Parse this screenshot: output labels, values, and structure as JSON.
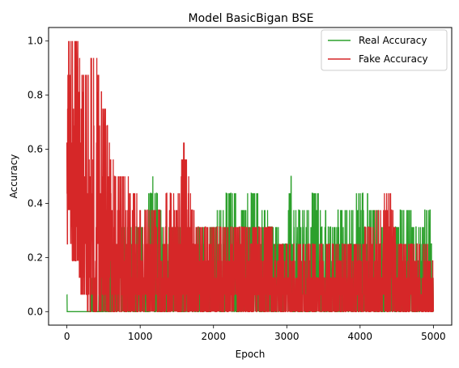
{
  "chart_data": {
    "type": "line",
    "title": "Model BasicBigan BSE",
    "xlabel": "Epoch",
    "ylabel": "Accuracy",
    "xlim": [
      -250,
      5250
    ],
    "ylim": [
      -0.05,
      1.05
    ],
    "xticks": [
      0,
      1000,
      2000,
      3000,
      4000,
      5000
    ],
    "yticks": [
      0.0,
      0.2,
      0.4,
      0.6,
      0.8,
      1.0
    ],
    "xtick_labels": [
      "0",
      "1000",
      "2000",
      "3000",
      "4000",
      "5000"
    ],
    "ytick_labels": [
      "0.0",
      "0.2",
      "0.4",
      "0.6",
      "0.8",
      "1.0"
    ],
    "grid": false,
    "legend_position": "top-right",
    "series": [
      {
        "name": "Real Accuracy",
        "color": "#2ca02c",
        "envelope": [
          [
            0,
            0.0,
            0.19
          ],
          [
            10,
            0.0,
            0.0
          ],
          [
            300,
            0.0,
            0.0
          ],
          [
            350,
            0.0,
            0.13
          ],
          [
            400,
            0.0,
            0.0
          ],
          [
            450,
            0.0,
            0.06
          ],
          [
            500,
            0.0,
            0.19
          ],
          [
            600,
            0.0,
            0.25
          ],
          [
            800,
            0.0,
            0.31
          ],
          [
            1000,
            0.0,
            0.31
          ],
          [
            1200,
            0.0,
            0.5
          ],
          [
            1300,
            0.0,
            0.31
          ],
          [
            1500,
            0.0,
            0.31
          ],
          [
            1600,
            0.0,
            0.25
          ],
          [
            1800,
            0.0,
            0.31
          ],
          [
            2000,
            0.0,
            0.31
          ],
          [
            2200,
            0.0,
            0.44
          ],
          [
            2400,
            0.0,
            0.38
          ],
          [
            2500,
            0.0,
            0.44
          ],
          [
            2600,
            0.0,
            0.44
          ],
          [
            2800,
            0.0,
            0.31
          ],
          [
            3000,
            0.0,
            0.25
          ],
          [
            3050,
            0.0,
            0.5
          ],
          [
            3100,
            0.0,
            0.38
          ],
          [
            3300,
            0.0,
            0.38
          ],
          [
            3400,
            0.0,
            0.44
          ],
          [
            3600,
            0.0,
            0.31
          ],
          [
            3800,
            0.0,
            0.38
          ],
          [
            3900,
            0.0,
            0.38
          ],
          [
            4000,
            0.0,
            0.44
          ],
          [
            4200,
            0.0,
            0.38
          ],
          [
            4400,
            0.0,
            0.25
          ],
          [
            4600,
            0.0,
            0.38
          ],
          [
            4800,
            0.0,
            0.31
          ],
          [
            4950,
            0.0,
            0.38
          ],
          [
            5000,
            0.0,
            0.13
          ]
        ]
      },
      {
        "name": "Fake Accuracy",
        "color": "#d62728",
        "envelope": [
          [
            0,
            0.19,
            0.62
          ],
          [
            20,
            0.38,
            1.0
          ],
          [
            80,
            0.19,
            1.0
          ],
          [
            150,
            0.19,
            1.0
          ],
          [
            200,
            0.06,
            0.88
          ],
          [
            250,
            0.06,
            0.88
          ],
          [
            300,
            0.0,
            0.94
          ],
          [
            350,
            0.0,
            0.94
          ],
          [
            400,
            0.0,
            0.94
          ],
          [
            450,
            0.0,
            0.81
          ],
          [
            500,
            0.0,
            0.75
          ],
          [
            550,
            0.0,
            0.69
          ],
          [
            600,
            0.0,
            0.56
          ],
          [
            700,
            0.0,
            0.5
          ],
          [
            800,
            0.0,
            0.5
          ],
          [
            900,
            0.0,
            0.44
          ],
          [
            1000,
            0.0,
            0.38
          ],
          [
            1100,
            0.0,
            0.38
          ],
          [
            1200,
            0.0,
            0.38
          ],
          [
            1300,
            0.0,
            0.38
          ],
          [
            1400,
            0.0,
            0.44
          ],
          [
            1500,
            0.0,
            0.38
          ],
          [
            1600,
            0.0,
            0.62
          ],
          [
            1700,
            0.0,
            0.38
          ],
          [
            1800,
            0.0,
            0.31
          ],
          [
            2000,
            0.0,
            0.31
          ],
          [
            2200,
            0.0,
            0.31
          ],
          [
            2400,
            0.0,
            0.31
          ],
          [
            2600,
            0.0,
            0.31
          ],
          [
            2800,
            0.0,
            0.31
          ],
          [
            2900,
            0.0,
            0.25
          ],
          [
            3000,
            0.0,
            0.25
          ],
          [
            3500,
            0.0,
            0.25
          ],
          [
            4000,
            0.0,
            0.25
          ],
          [
            4400,
            0.0,
            0.44
          ],
          [
            4500,
            0.0,
            0.25
          ],
          [
            5000,
            0.0,
            0.25
          ]
        ]
      }
    ]
  }
}
